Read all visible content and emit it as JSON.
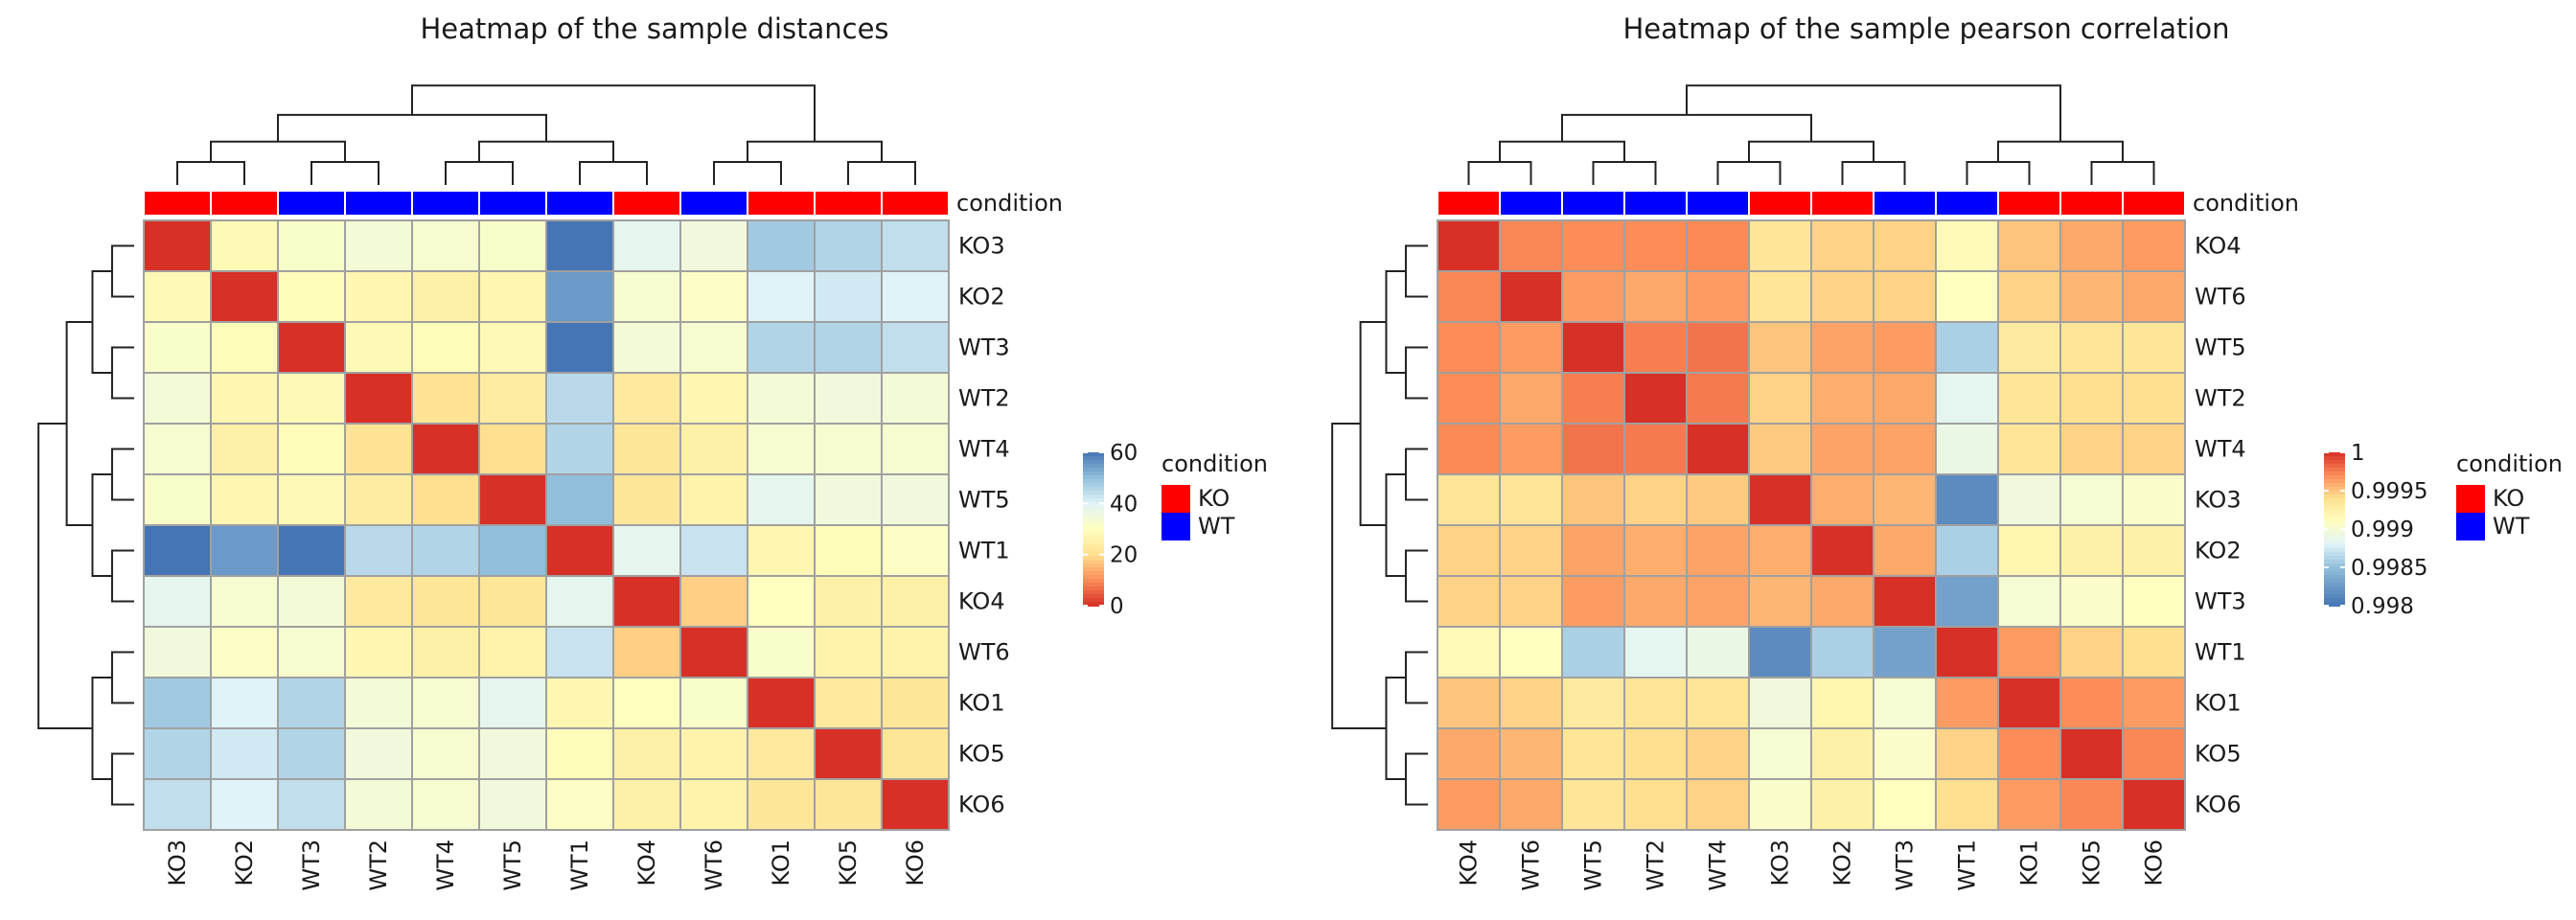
{
  "annotation": {
    "title": "condition",
    "levels": [
      {
        "label": "KO",
        "color": "#ff0000"
      },
      {
        "label": "WT",
        "color": "#0000ff"
      }
    ]
  },
  "chart_data": [
    {
      "type": "heatmap",
      "title": "Heatmap of the sample distances",
      "rows": [
        "KO3",
        "KO2",
        "WT3",
        "WT2",
        "WT4",
        "WT5",
        "WT1",
        "KO4",
        "WT6",
        "KO1",
        "KO5",
        "KO6"
      ],
      "cols": [
        "KO3",
        "KO2",
        "WT3",
        "WT2",
        "WT4",
        "WT5",
        "WT1",
        "KO4",
        "WT6",
        "KO1",
        "KO5",
        "KO6"
      ],
      "col_condition": [
        "KO",
        "KO",
        "WT",
        "WT",
        "WT",
        "WT",
        "WT",
        "KO",
        "WT",
        "KO",
        "KO",
        "KO"
      ],
      "annotation_label": "condition",
      "color_scale": {
        "min": 0,
        "max": 60,
        "ticks": [
          "60",
          "40",
          "20",
          "0"
        ],
        "tick_values": [
          60,
          40,
          20,
          0
        ],
        "stops": [
          {
            "v": 0,
            "c": "#d73027"
          },
          {
            "v": 10,
            "c": "#fc8d59"
          },
          {
            "v": 20,
            "c": "#fee090"
          },
          {
            "v": 30,
            "c": "#ffffbf"
          },
          {
            "v": 40,
            "c": "#e0f3f8"
          },
          {
            "v": 50,
            "c": "#91bfdb"
          },
          {
            "v": 60,
            "c": "#4575b4"
          }
        ]
      },
      "values": [
        [
          0,
          28,
          32,
          34,
          33,
          32,
          62,
          38,
          35,
          48,
          46,
          44
        ],
        [
          28,
          0,
          29,
          27,
          25,
          27,
          55,
          33,
          31,
          40,
          42,
          40
        ],
        [
          32,
          29,
          0,
          28,
          29,
          28,
          60,
          34,
          33,
          46,
          46,
          44
        ],
        [
          34,
          27,
          28,
          0,
          21,
          24,
          45,
          23,
          27,
          34,
          35,
          34
        ],
        [
          33,
          25,
          29,
          21,
          0,
          20,
          46,
          22,
          25,
          33,
          33,
          33
        ],
        [
          32,
          27,
          28,
          24,
          20,
          0,
          50,
          22,
          26,
          38,
          35,
          35
        ],
        [
          62,
          55,
          60,
          45,
          46,
          50,
          0,
          38,
          43,
          27,
          29,
          31
        ],
        [
          38,
          33,
          34,
          23,
          22,
          22,
          38,
          0,
          18,
          30,
          25,
          25
        ],
        [
          35,
          31,
          33,
          27,
          25,
          26,
          43,
          18,
          0,
          32,
          26,
          26
        ],
        [
          48,
          40,
          46,
          34,
          33,
          38,
          27,
          30,
          32,
          0,
          23,
          22
        ],
        [
          46,
          42,
          46,
          35,
          33,
          35,
          29,
          25,
          26,
          23,
          0,
          22
        ],
        [
          44,
          40,
          44,
          34,
          33,
          35,
          31,
          25,
          26,
          22,
          22,
          0
        ]
      ]
    },
    {
      "type": "heatmap",
      "title": "Heatmap of the sample pearson correlation",
      "rows": [
        "KO4",
        "WT6",
        "WT5",
        "WT2",
        "WT4",
        "KO3",
        "KO2",
        "WT3",
        "WT1",
        "KO1",
        "KO5",
        "KO6"
      ],
      "cols": [
        "KO4",
        "WT6",
        "WT5",
        "WT2",
        "WT4",
        "KO3",
        "KO2",
        "WT3",
        "WT1",
        "KO1",
        "KO5",
        "KO6"
      ],
      "col_condition": [
        "KO",
        "WT",
        "WT",
        "WT",
        "WT",
        "KO",
        "KO",
        "WT",
        "WT",
        "KO",
        "KO",
        "KO"
      ],
      "annotation_label": "condition",
      "color_scale": {
        "min": 0.998,
        "max": 1,
        "ticks": [
          "1",
          "0.9995",
          "0.999",
          "0.9985",
          "0.998"
        ],
        "tick_values": [
          1,
          0.9995,
          0.999,
          0.9985,
          0.998
        ],
        "stops": [
          {
            "v": 0.998,
            "c": "#4575b4"
          },
          {
            "v": 0.9985,
            "c": "#91bfdb"
          },
          {
            "v": 0.9988,
            "c": "#e0f3f8"
          },
          {
            "v": 0.9991,
            "c": "#ffffbf"
          },
          {
            "v": 0.9994,
            "c": "#fee090"
          },
          {
            "v": 0.9997,
            "c": "#fc8d59"
          },
          {
            "v": 1,
            "c": "#d73027"
          }
        ]
      },
      "values": [
        [
          1,
          0.99972,
          0.9997,
          0.9997,
          0.99971,
          0.99935,
          0.99945,
          0.99945,
          0.99915,
          0.9995,
          0.9996,
          0.99965
        ],
        [
          0.99972,
          1,
          0.99965,
          0.9996,
          0.99965,
          0.99935,
          0.99945,
          0.99945,
          0.9991,
          0.99945,
          0.99955,
          0.9996
        ],
        [
          0.9997,
          0.99965,
          1,
          0.99975,
          0.99978,
          0.9995,
          0.99962,
          0.99965,
          0.9986,
          0.9993,
          0.99935,
          0.99935
        ],
        [
          0.9997,
          0.9996,
          0.99975,
          1,
          0.99976,
          0.99945,
          0.99958,
          0.9996,
          0.99885,
          0.99935,
          0.9994,
          0.9994
        ],
        [
          0.99971,
          0.99965,
          0.99978,
          0.99976,
          1,
          0.99948,
          0.99962,
          0.99962,
          0.9989,
          0.99935,
          0.99945,
          0.99945
        ],
        [
          0.99935,
          0.99935,
          0.9995,
          0.99945,
          0.99948,
          1,
          0.99958,
          0.99955,
          0.99815,
          0.99895,
          0.999,
          0.99905
        ],
        [
          0.99945,
          0.99945,
          0.99962,
          0.99958,
          0.99962,
          0.99958,
          1,
          0.9996,
          0.9986,
          0.9992,
          0.99925,
          0.99925
        ],
        [
          0.99945,
          0.99945,
          0.99965,
          0.9996,
          0.99962,
          0.99955,
          0.9996,
          1,
          0.9983,
          0.999,
          0.99905,
          0.9991
        ],
        [
          0.99915,
          0.9991,
          0.9986,
          0.99885,
          0.9989,
          0.99815,
          0.9986,
          0.9983,
          1,
          0.99965,
          0.99945,
          0.9994
        ],
        [
          0.9995,
          0.99945,
          0.9993,
          0.99935,
          0.99935,
          0.99895,
          0.9992,
          0.999,
          0.99965,
          1,
          0.9997,
          0.99965
        ],
        [
          0.9996,
          0.99955,
          0.99935,
          0.9994,
          0.99945,
          0.999,
          0.99925,
          0.99905,
          0.99945,
          0.9997,
          1,
          0.99972
        ],
        [
          0.99965,
          0.9996,
          0.99935,
          0.9994,
          0.99945,
          0.99905,
          0.99925,
          0.9991,
          0.9994,
          0.99965,
          0.99972,
          1
        ]
      ]
    }
  ]
}
